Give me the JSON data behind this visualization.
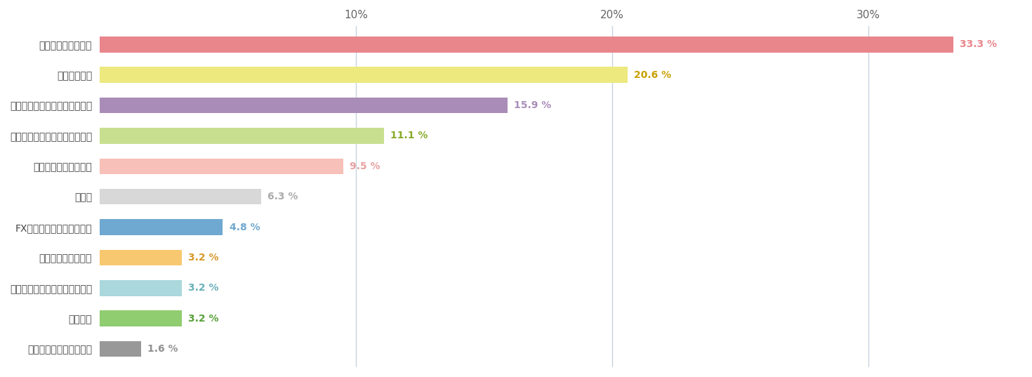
{
  "categories": [
    "アプリが使いにくい",
    "約定力が低い",
    "スプレッドを安定させて欲しい",
    "スキャルピングのルール明文化",
    "サポート体制が不十分",
    "その他",
    "FX情報を充実させて欲しい",
    "自動売買ができない",
    "キャンペーンを増やしてほしい",
    "特になし",
    "スワップポイントが低い"
  ],
  "values": [
    33.3,
    20.6,
    15.9,
    11.1,
    9.5,
    6.3,
    4.8,
    3.2,
    3.2,
    3.2,
    1.6
  ],
  "labels": [
    "33.3 %",
    "20.6 %",
    "15.9 %",
    "11.1 %",
    "9.5 %",
    "6.3 %",
    "4.8 %",
    "3.2 %",
    "3.2 %",
    "3.2 %",
    "1.6 %"
  ],
  "bar_colors": [
    "#e8868c",
    "#ede97e",
    "#a98db8",
    "#c8df90",
    "#f7c0b8",
    "#d8d8d8",
    "#6fa8d0",
    "#f8c870",
    "#aad8dc",
    "#90cc70",
    "#989898"
  ],
  "label_colors": [
    "#e8868c",
    "#c8a000",
    "#a98db8",
    "#88aa28",
    "#e8a0a0",
    "#aaaaaa",
    "#6fa8d0",
    "#d89828",
    "#68b0b8",
    "#58a038",
    "#909090"
  ],
  "xlim": [
    0,
    36
  ],
  "xticks": [
    0,
    10,
    20,
    30
  ],
  "xtick_labels": [
    "",
    "10%",
    "20%",
    "30%"
  ],
  "background_color": "#ffffff",
  "bar_height": 0.52,
  "grid_color": "#c8d4e0"
}
